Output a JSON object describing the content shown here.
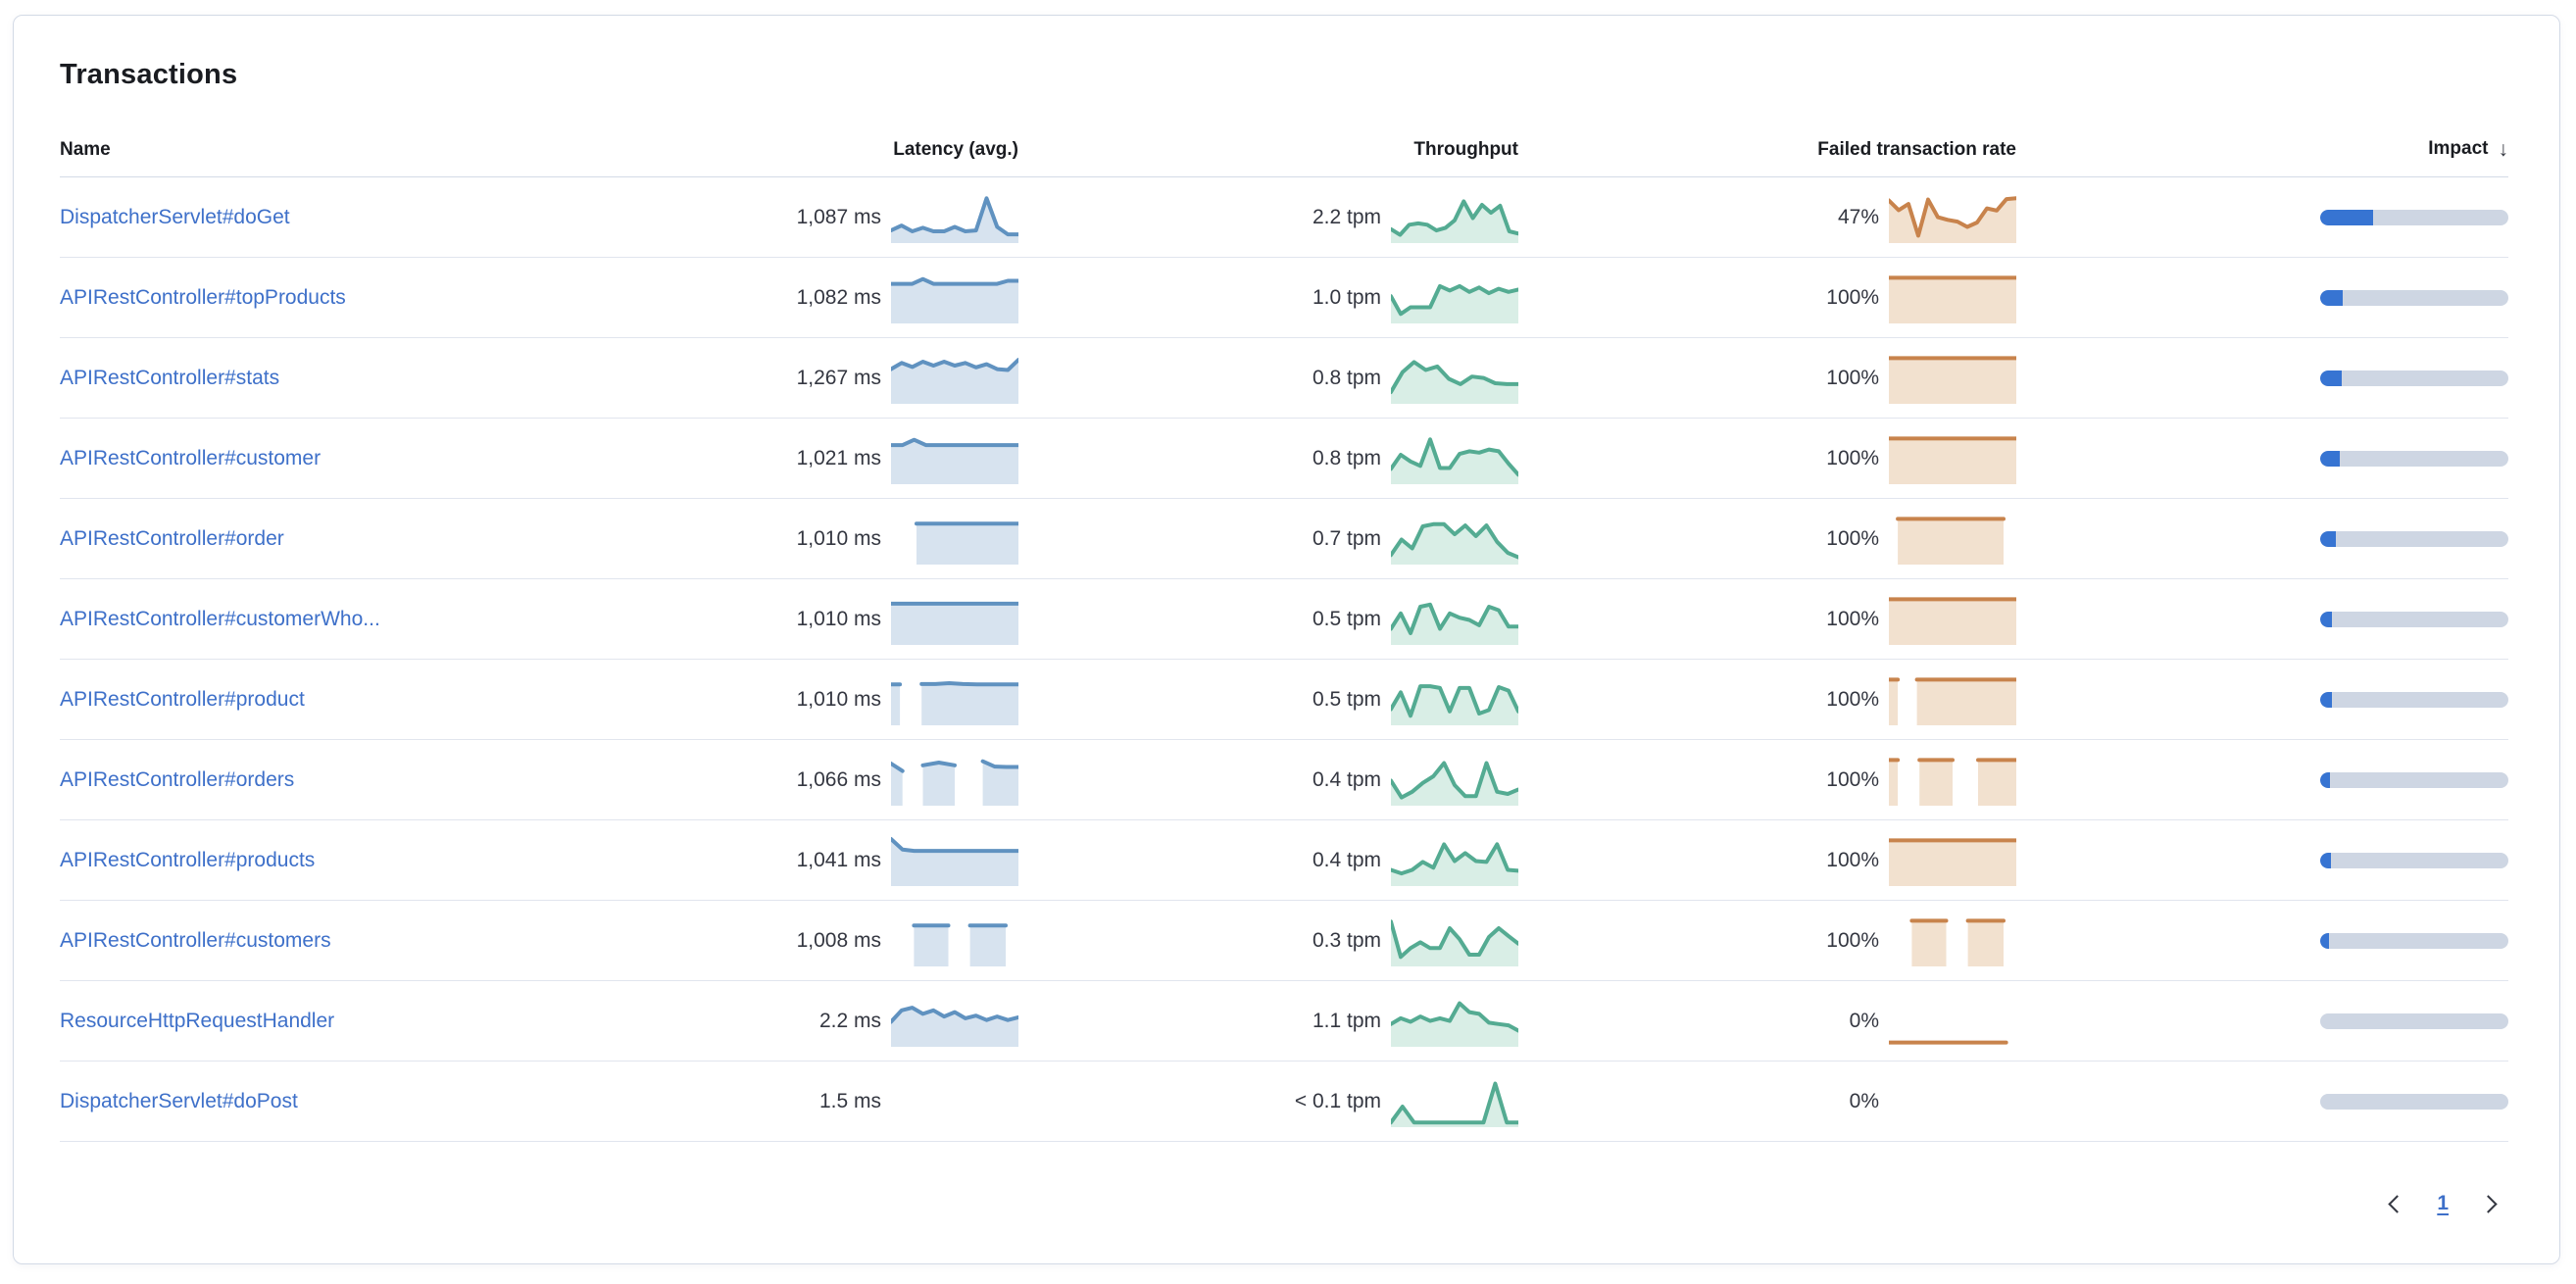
{
  "panel": {
    "title": "Transactions"
  },
  "colors": {
    "latency_line": "#6092c0",
    "latency_fill": "#d7e3ef",
    "throughput_line": "#54ab92",
    "throughput_fill": "#d9eee6",
    "failed_line": "#c8834c",
    "failed_fill": "#f2e1cf",
    "impact_fill": "#3774d2",
    "impact_track": "#ced6e3",
    "link": "#3e70c9"
  },
  "table": {
    "columns": [
      {
        "label": "Name"
      },
      {
        "label": "Latency (avg.)"
      },
      {
        "label": "Throughput"
      },
      {
        "label": "Failed transaction rate"
      },
      {
        "label": "Impact",
        "sorted": "desc",
        "sort_icon": "arrow-down"
      }
    ],
    "rows": [
      {
        "name": "DispatcherServlet#doGet",
        "latency": "1,087 ms",
        "throughput": "2.2 tpm",
        "failed": "47%",
        "impact": 0.28,
        "latency_spark": {
          "segments": [
            {
              "x0": 0,
              "x1": 1,
              "pts": [
                0.22,
                0.33,
                0.2,
                0.28,
                0.2,
                0.2,
                0.3,
                0.2,
                0.22,
                0.95,
                0.3,
                0.13,
                0.13
              ]
            }
          ]
        },
        "throughput_spark": {
          "segments": [
            {
              "x0": 0,
              "x1": 1,
              "pts": [
                0.25,
                0.12,
                0.35,
                0.38,
                0.35,
                0.22,
                0.28,
                0.45,
                0.88,
                0.5,
                0.8,
                0.62,
                0.78,
                0.2,
                0.15
              ]
            }
          ]
        },
        "failed_spark": {
          "segments": [
            {
              "x0": 0,
              "x1": 1,
              "pts": [
                0.9,
                0.68,
                0.82,
                0.1,
                0.92,
                0.52,
                0.46,
                0.42,
                0.3,
                0.4,
                0.72,
                0.67,
                0.93,
                0.95
              ]
            }
          ]
        }
      },
      {
        "name": "APIRestController#topProducts",
        "latency": "1,082 ms",
        "throughput": "1.0 tpm",
        "failed": "100%",
        "impact": 0.12,
        "latency_spark": {
          "segments": [
            {
              "x0": 0,
              "x1": 1,
              "pts": [
                0.83,
                0.83,
                0.83,
                0.94,
                0.83,
                0.83,
                0.83,
                0.83,
                0.83,
                0.83,
                0.83,
                0.9,
                0.9
              ]
            }
          ]
        },
        "throughput_spark": {
          "segments": [
            {
              "x0": 0,
              "x1": 1,
              "pts": [
                0.55,
                0.15,
                0.3,
                0.3,
                0.3,
                0.78,
                0.68,
                0.78,
                0.65,
                0.75,
                0.62,
                0.72,
                0.65,
                0.7
              ]
            }
          ]
        },
        "failed_spark": {
          "segments": [
            {
              "x0": 0,
              "x1": 1,
              "pts": [
                0.97,
                0.97
              ]
            }
          ]
        }
      },
      {
        "name": "APIRestController#stats",
        "latency": "1,267 ms",
        "throughput": "0.8 tpm",
        "failed": "100%",
        "impact": 0.115,
        "latency_spark": {
          "segments": [
            {
              "x0": 0,
              "x1": 1,
              "pts": [
                0.72,
                0.86,
                0.77,
                0.89,
                0.8,
                0.89,
                0.8,
                0.86,
                0.76,
                0.83,
                0.72,
                0.7,
                0.93
              ]
            }
          ]
        },
        "throughput_spark": {
          "segments": [
            {
              "x0": 0,
              "x1": 1,
              "pts": [
                0.2,
                0.65,
                0.88,
                0.7,
                0.78,
                0.5,
                0.38,
                0.55,
                0.52,
                0.4,
                0.38,
                0.38
              ]
            }
          ]
        },
        "failed_spark": {
          "segments": [
            {
              "x0": 0,
              "x1": 1,
              "pts": [
                0.97,
                0.97
              ]
            }
          ]
        }
      },
      {
        "name": "APIRestController#customer",
        "latency": "1,021 ms",
        "throughput": "0.8 tpm",
        "failed": "100%",
        "impact": 0.105,
        "latency_spark": {
          "segments": [
            {
              "x0": 0,
              "x1": 1,
              "pts": [
                0.82,
                0.82,
                0.94,
                0.82,
                0.82,
                0.82,
                0.82,
                0.82,
                0.82,
                0.82,
                0.82,
                0.82
              ]
            }
          ]
        },
        "throughput_spark": {
          "segments": [
            {
              "x0": 0,
              "x1": 1,
              "pts": [
                0.28,
                0.6,
                0.45,
                0.35,
                0.95,
                0.3,
                0.3,
                0.62,
                0.68,
                0.65,
                0.72,
                0.68,
                0.4,
                0.15
              ]
            }
          ]
        },
        "failed_spark": {
          "segments": [
            {
              "x0": 0,
              "x1": 1,
              "pts": [
                0.97,
                0.97
              ]
            }
          ]
        }
      },
      {
        "name": "APIRestController#order",
        "latency": "1,010 ms",
        "throughput": "0.7 tpm",
        "failed": "100%",
        "impact": 0.085,
        "latency_spark": {
          "segments": [
            {
              "x0": 0.2,
              "x1": 1,
              "pts": [
                0.86,
                0.86,
                0.86,
                0.86,
                0.86,
                0.86,
                0.86,
                0.86
              ]
            }
          ]
        },
        "throughput_spark": {
          "segments": [
            {
              "x0": 0,
              "x1": 1,
              "pts": [
                0.15,
                0.5,
                0.3,
                0.8,
                0.85,
                0.85,
                0.62,
                0.82,
                0.58,
                0.82,
                0.45,
                0.2,
                0.1
              ]
            }
          ]
        },
        "failed_spark": {
          "segments": [
            {
              "x0": 0.07,
              "x1": 0.9,
              "pts": [
                0.97,
                0.97
              ]
            }
          ]
        }
      },
      {
        "name": "APIRestController#customerWho...",
        "latency": "1,010 ms",
        "throughput": "0.5 tpm",
        "failed": "100%",
        "impact": 0.062,
        "latency_spark": {
          "segments": [
            {
              "x0": 0,
              "x1": 1,
              "pts": [
                0.87,
                0.87,
                0.87,
                0.87,
                0.87,
                0.87,
                0.87,
                0.87
              ]
            }
          ]
        },
        "throughput_spark": {
          "segments": [
            {
              "x0": 0,
              "x1": 1,
              "pts": [
                0.3,
                0.65,
                0.2,
                0.8,
                0.85,
                0.3,
                0.65,
                0.55,
                0.5,
                0.38,
                0.8,
                0.72,
                0.35,
                0.35
              ]
            }
          ]
        },
        "failed_spark": {
          "segments": [
            {
              "x0": 0,
              "x1": 1,
              "pts": [
                0.97,
                0.97
              ]
            }
          ]
        }
      },
      {
        "name": "APIRestController#product",
        "latency": "1,010 ms",
        "throughput": "0.5 tpm",
        "failed": "100%",
        "impact": 0.06,
        "latency_spark": {
          "segments": [
            {
              "x0": 0,
              "x1": 0.07,
              "pts": [
                0.86,
                0.86
              ]
            },
            {
              "x0": 0.24,
              "x1": 1,
              "pts": [
                0.87,
                0.87,
                0.89,
                0.87,
                0.86,
                0.86,
                0.86,
                0.86
              ]
            }
          ]
        },
        "throughput_spark": {
          "segments": [
            {
              "x0": 0,
              "x1": 1,
              "pts": [
                0.3,
                0.68,
                0.15,
                0.82,
                0.82,
                0.78,
                0.25,
                0.78,
                0.78,
                0.2,
                0.28,
                0.8,
                0.72,
                0.25
              ]
            }
          ]
        },
        "failed_spark": {
          "segments": [
            {
              "x0": 0,
              "x1": 0.07,
              "pts": [
                0.97,
                0.97
              ]
            },
            {
              "x0": 0.22,
              "x1": 1,
              "pts": [
                0.97,
                0.97
              ]
            }
          ]
        }
      },
      {
        "name": "APIRestController#orders",
        "latency": "1,066 ms",
        "throughput": "0.4 tpm",
        "failed": "100%",
        "impact": 0.052,
        "latency_spark": {
          "segments": [
            {
              "x0": 0,
              "x1": 0.09,
              "pts": [
                0.89,
                0.72
              ]
            },
            {
              "x0": 0.25,
              "x1": 0.5,
              "pts": [
                0.85,
                0.91,
                0.85
              ]
            },
            {
              "x0": 0.72,
              "x1": 1,
              "pts": [
                0.94,
                0.82,
                0.81,
                0.81
              ]
            }
          ]
        },
        "throughput_spark": {
          "segments": [
            {
              "x0": 0,
              "x1": 1,
              "pts": [
                0.5,
                0.12,
                0.25,
                0.45,
                0.6,
                0.9,
                0.4,
                0.15,
                0.15,
                0.9,
                0.25,
                0.2,
                0.3
              ]
            }
          ]
        },
        "failed_spark": {
          "segments": [
            {
              "x0": 0,
              "x1": 0.07,
              "pts": [
                0.97,
                0.97
              ]
            },
            {
              "x0": 0.24,
              "x1": 0.5,
              "pts": [
                0.97,
                0.97
              ]
            },
            {
              "x0": 0.7,
              "x1": 1,
              "pts": [
                0.97,
                0.97
              ]
            }
          ]
        }
      },
      {
        "name": "APIRestController#products",
        "latency": "1,041 ms",
        "throughput": "0.4 tpm",
        "failed": "100%",
        "impact": 0.058,
        "latency_spark": {
          "segments": [
            {
              "x0": 0,
              "x1": 1,
              "pts": [
                1,
                0.76,
                0.73,
                0.73,
                0.73,
                0.73,
                0.73,
                0.73,
                0.73,
                0.73,
                0.73,
                0.73
              ]
            }
          ]
        },
        "throughput_spark": {
          "segments": [
            {
              "x0": 0,
              "x1": 1,
              "pts": [
                0.3,
                0.22,
                0.3,
                0.48,
                0.35,
                0.88,
                0.5,
                0.68,
                0.5,
                0.48,
                0.88,
                0.3,
                0.28
              ]
            }
          ]
        },
        "failed_spark": {
          "segments": [
            {
              "x0": 0,
              "x1": 1,
              "pts": [
                0.97,
                0.97
              ]
            }
          ]
        }
      },
      {
        "name": "APIRestController#customers",
        "latency": "1,008 ms",
        "throughput": "0.3 tpm",
        "failed": "100%",
        "impact": 0.045,
        "latency_spark": {
          "segments": [
            {
              "x0": 0.18,
              "x1": 0.45,
              "pts": [
                0.86,
                0.86
              ]
            },
            {
              "x0": 0.62,
              "x1": 0.9,
              "pts": [
                0.86,
                0.86
              ]
            }
          ]
        },
        "throughput_spark": {
          "segments": [
            {
              "x0": 0,
              "x1": 1,
              "pts": [
                0.95,
                0.15,
                0.35,
                0.48,
                0.35,
                0.35,
                0.8,
                0.55,
                0.2,
                0.2,
                0.6,
                0.8,
                0.62,
                0.45
              ]
            }
          ]
        },
        "failed_spark": {
          "segments": [
            {
              "x0": 0.18,
              "x1": 0.45,
              "pts": [
                0.97,
                0.97
              ]
            },
            {
              "x0": 0.62,
              "x1": 0.9,
              "pts": [
                0.97,
                0.97
              ]
            }
          ]
        }
      },
      {
        "name": "ResourceHttpRequestHandler",
        "latency": "2.2 ms",
        "throughput": "1.1 tpm",
        "failed": "0%",
        "impact": 0,
        "latency_spark": {
          "segments": [
            {
              "x0": 0,
              "x1": 1,
              "pts": [
                0.5,
                0.76,
                0.82,
                0.68,
                0.76,
                0.62,
                0.72,
                0.58,
                0.64,
                0.54,
                0.62,
                0.54,
                0.6
              ]
            }
          ]
        },
        "throughput_spark": {
          "segments": [
            {
              "x0": 0,
              "x1": 1,
              "pts": [
                0.45,
                0.58,
                0.5,
                0.62,
                0.52,
                0.58,
                0.52,
                0.92,
                0.72,
                0.68,
                0.48,
                0.45,
                0.42,
                0.3
              ]
            }
          ]
        },
        "failed_spark": {
          "fill": false,
          "segments": [
            {
              "x0": 0,
              "x1": 0.92,
              "pts": [
                0.03,
                0.03
              ]
            }
          ]
        }
      },
      {
        "name": "DispatcherServlet#doPost",
        "latency": "1.5 ms",
        "throughput": "< 0.1 tpm",
        "failed": "0%",
        "impact": 0,
        "latency_spark": null,
        "throughput_spark": {
          "segments": [
            {
              "x0": 0,
              "x1": 1,
              "pts": [
                0.04,
                0.4,
                0.04,
                0.04,
                0.04,
                0.04,
                0.04,
                0.04,
                0.04,
                0.92,
                0.04,
                0.04
              ]
            }
          ]
        },
        "failed_spark": null
      }
    ]
  },
  "pagination": {
    "current_page": "1",
    "prev_icon": "chevron-left",
    "next_icon": "chevron-right"
  }
}
